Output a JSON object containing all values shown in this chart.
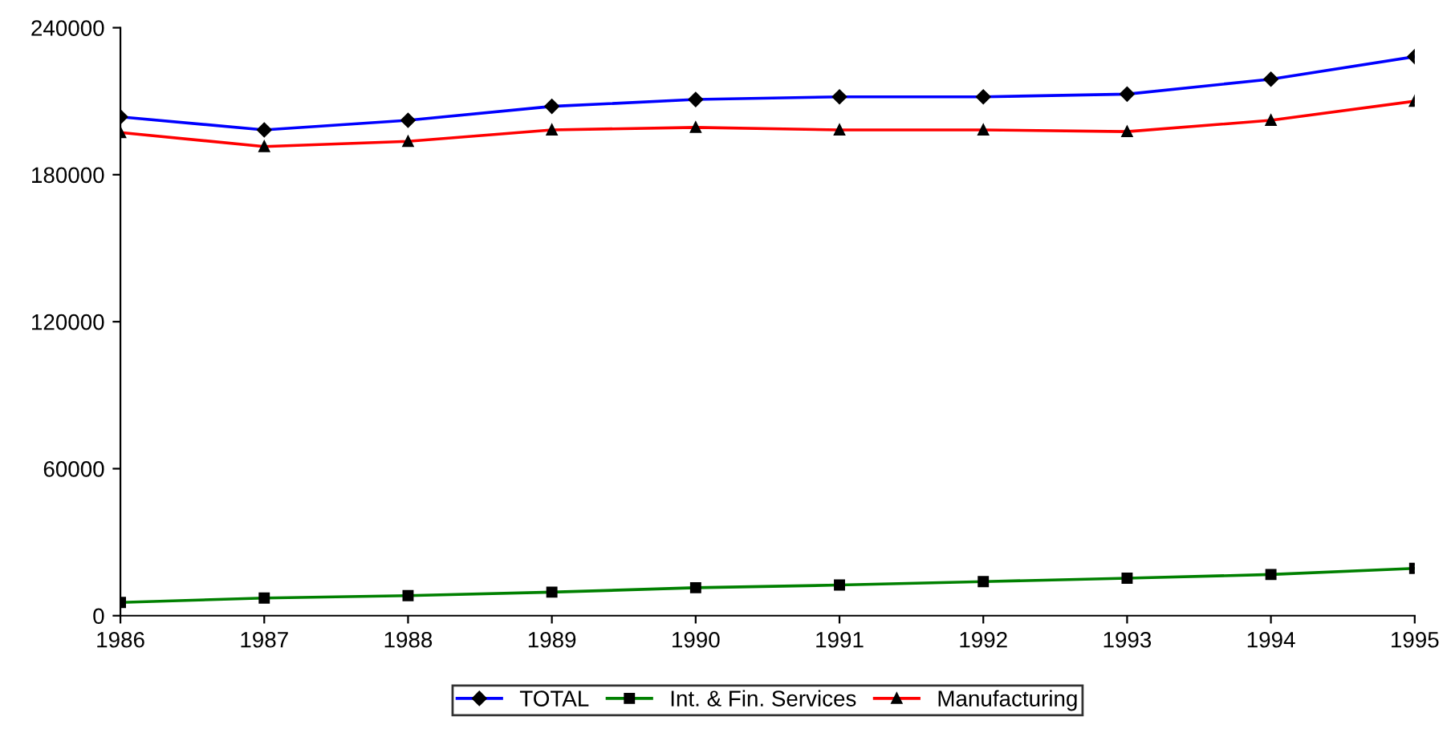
{
  "chart_data": {
    "type": "line",
    "x": [
      1986,
      1987,
      1988,
      1989,
      1990,
      1991,
      1992,
      1993,
      1994,
      1995
    ],
    "series": [
      {
        "name": "TOTAL",
        "color": "#0000ff",
        "marker": "diamond",
        "values": [
          203600,
          198300,
          202200,
          207900,
          210700,
          211800,
          211800,
          212900,
          219000,
          228200
        ]
      },
      {
        "name": "Int. & Fin. Services",
        "color": "#008000",
        "marker": "square",
        "values": [
          5400,
          7200,
          8200,
          9600,
          11400,
          12500,
          13900,
          15300,
          16800,
          19300
        ]
      },
      {
        "name": "Manufacturing",
        "color": "#ff0000",
        "marker": "triangle",
        "values": [
          197200,
          191500,
          193600,
          198300,
          199300,
          198300,
          198300,
          197600,
          202200,
          210000
        ]
      }
    ],
    "xlim": [
      1986,
      1995
    ],
    "xticks": [
      1986,
      1987,
      1988,
      1989,
      1990,
      1991,
      1992,
      1993,
      1994,
      1995
    ],
    "ylim": [
      0,
      240000
    ],
    "yticks": [
      0,
      60000,
      120000,
      180000,
      240000
    ],
    "grid": false,
    "legend": "bottom"
  }
}
